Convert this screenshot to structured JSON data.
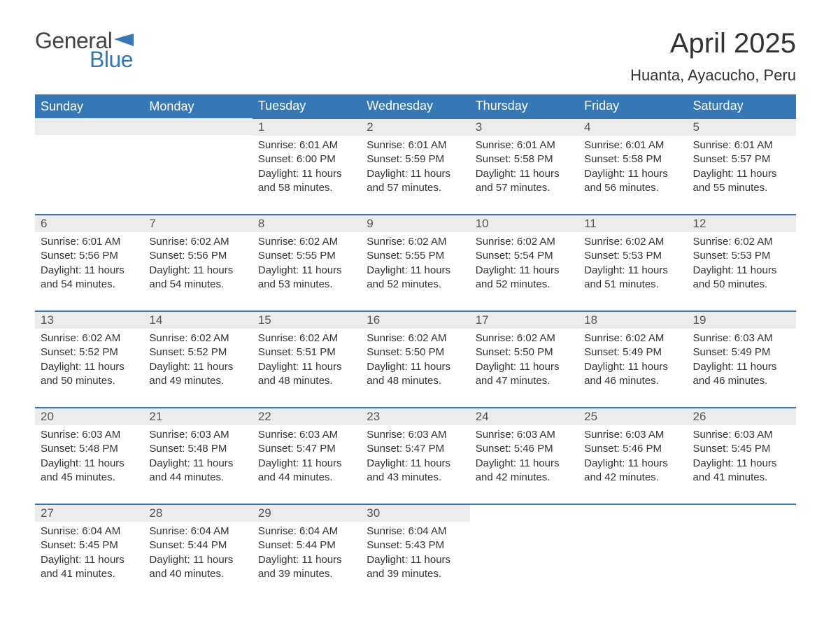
{
  "logo": {
    "text_general": "General",
    "text_blue": "Blue",
    "flag_color": "#3678b6"
  },
  "title": {
    "month_year": "April 2025",
    "location": "Huanta, Ayacucho, Peru"
  },
  "colors": {
    "header_bg": "#3678b6",
    "header_text": "#ffffff",
    "daynum_bg": "#ececec",
    "daynum_text": "#555555",
    "body_text": "#333333",
    "row_border": "#3678b6",
    "page_bg": "#ffffff",
    "logo_general": "#444444",
    "logo_blue": "#3678b6"
  },
  "typography": {
    "title_fontsize": 40,
    "location_fontsize": 22,
    "header_fontsize": 18,
    "daynum_fontsize": 17,
    "body_fontsize": 15,
    "logo_fontsize": 32,
    "font_family": "Arial"
  },
  "labels": {
    "sunrise": "Sunrise",
    "sunset": "Sunset",
    "daylight": "Daylight"
  },
  "calendar": {
    "type": "table",
    "columns": [
      "Sunday",
      "Monday",
      "Tuesday",
      "Wednesday",
      "Thursday",
      "Friday",
      "Saturday"
    ],
    "weeks": [
      [
        null,
        null,
        {
          "day": 1,
          "sunrise": "6:01 AM",
          "sunset": "6:00 PM",
          "daylight": "11 hours and 58 minutes."
        },
        {
          "day": 2,
          "sunrise": "6:01 AM",
          "sunset": "5:59 PM",
          "daylight": "11 hours and 57 minutes."
        },
        {
          "day": 3,
          "sunrise": "6:01 AM",
          "sunset": "5:58 PM",
          "daylight": "11 hours and 57 minutes."
        },
        {
          "day": 4,
          "sunrise": "6:01 AM",
          "sunset": "5:58 PM",
          "daylight": "11 hours and 56 minutes."
        },
        {
          "day": 5,
          "sunrise": "6:01 AM",
          "sunset": "5:57 PM",
          "daylight": "11 hours and 55 minutes."
        }
      ],
      [
        {
          "day": 6,
          "sunrise": "6:01 AM",
          "sunset": "5:56 PM",
          "daylight": "11 hours and 54 minutes."
        },
        {
          "day": 7,
          "sunrise": "6:02 AM",
          "sunset": "5:56 PM",
          "daylight": "11 hours and 54 minutes."
        },
        {
          "day": 8,
          "sunrise": "6:02 AM",
          "sunset": "5:55 PM",
          "daylight": "11 hours and 53 minutes."
        },
        {
          "day": 9,
          "sunrise": "6:02 AM",
          "sunset": "5:55 PM",
          "daylight": "11 hours and 52 minutes."
        },
        {
          "day": 10,
          "sunrise": "6:02 AM",
          "sunset": "5:54 PM",
          "daylight": "11 hours and 52 minutes."
        },
        {
          "day": 11,
          "sunrise": "6:02 AM",
          "sunset": "5:53 PM",
          "daylight": "11 hours and 51 minutes."
        },
        {
          "day": 12,
          "sunrise": "6:02 AM",
          "sunset": "5:53 PM",
          "daylight": "11 hours and 50 minutes."
        }
      ],
      [
        {
          "day": 13,
          "sunrise": "6:02 AM",
          "sunset": "5:52 PM",
          "daylight": "11 hours and 50 minutes."
        },
        {
          "day": 14,
          "sunrise": "6:02 AM",
          "sunset": "5:52 PM",
          "daylight": "11 hours and 49 minutes."
        },
        {
          "day": 15,
          "sunrise": "6:02 AM",
          "sunset": "5:51 PM",
          "daylight": "11 hours and 48 minutes."
        },
        {
          "day": 16,
          "sunrise": "6:02 AM",
          "sunset": "5:50 PM",
          "daylight": "11 hours and 48 minutes."
        },
        {
          "day": 17,
          "sunrise": "6:02 AM",
          "sunset": "5:50 PM",
          "daylight": "11 hours and 47 minutes."
        },
        {
          "day": 18,
          "sunrise": "6:02 AM",
          "sunset": "5:49 PM",
          "daylight": "11 hours and 46 minutes."
        },
        {
          "day": 19,
          "sunrise": "6:03 AM",
          "sunset": "5:49 PM",
          "daylight": "11 hours and 46 minutes."
        }
      ],
      [
        {
          "day": 20,
          "sunrise": "6:03 AM",
          "sunset": "5:48 PM",
          "daylight": "11 hours and 45 minutes."
        },
        {
          "day": 21,
          "sunrise": "6:03 AM",
          "sunset": "5:48 PM",
          "daylight": "11 hours and 44 minutes."
        },
        {
          "day": 22,
          "sunrise": "6:03 AM",
          "sunset": "5:47 PM",
          "daylight": "11 hours and 44 minutes."
        },
        {
          "day": 23,
          "sunrise": "6:03 AM",
          "sunset": "5:47 PM",
          "daylight": "11 hours and 43 minutes."
        },
        {
          "day": 24,
          "sunrise": "6:03 AM",
          "sunset": "5:46 PM",
          "daylight": "11 hours and 42 minutes."
        },
        {
          "day": 25,
          "sunrise": "6:03 AM",
          "sunset": "5:46 PM",
          "daylight": "11 hours and 42 minutes."
        },
        {
          "day": 26,
          "sunrise": "6:03 AM",
          "sunset": "5:45 PM",
          "daylight": "11 hours and 41 minutes."
        }
      ],
      [
        {
          "day": 27,
          "sunrise": "6:04 AM",
          "sunset": "5:45 PM",
          "daylight": "11 hours and 41 minutes."
        },
        {
          "day": 28,
          "sunrise": "6:04 AM",
          "sunset": "5:44 PM",
          "daylight": "11 hours and 40 minutes."
        },
        {
          "day": 29,
          "sunrise": "6:04 AM",
          "sunset": "5:44 PM",
          "daylight": "11 hours and 39 minutes."
        },
        {
          "day": 30,
          "sunrise": "6:04 AM",
          "sunset": "5:43 PM",
          "daylight": "11 hours and 39 minutes."
        },
        null,
        null,
        null
      ]
    ]
  }
}
